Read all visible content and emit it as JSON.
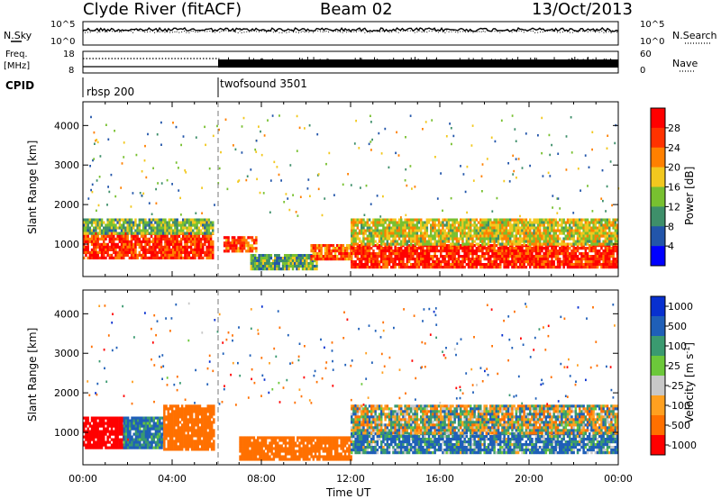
{
  "header": {
    "station": "Clyde River (fitACF)",
    "beam": "Beam 02",
    "date": "13/Oct/2013"
  },
  "params_panel": {
    "nsky_label": "N.Sky",
    "nsearch_label": "N.Search",
    "freq_label_line1": "Freq.",
    "freq_label_line2": "[MHz]",
    "nave_label": "Nave",
    "cpid_label": "CPID",
    "noise_left_ticks": [
      "10^5",
      "10^0"
    ],
    "noise_right_ticks": [
      "10^5",
      "10^0"
    ],
    "freq_ticks": [
      "18",
      "8"
    ],
    "nave_ticks": [
      "60",
      "0"
    ],
    "cpid_segments": [
      {
        "name": "rbsp 200",
        "start_hour": 0,
        "end_hour": 6.0
      },
      {
        "name": "twofsound 3501",
        "start_hour": 6.0,
        "end_hour": 24
      }
    ]
  },
  "time_ticks": [
    "00:00",
    "04:00",
    "08:00",
    "12:00",
    "16:00",
    "20:00",
    "00:00"
  ],
  "range_ticks": [
    "1000",
    "2000",
    "3000",
    "4000"
  ],
  "power_ticks": [
    "4",
    "8",
    "12",
    "16",
    "20",
    "24",
    "28"
  ],
  "velocity_ticks": [
    "1000",
    "500",
    "100",
    "25",
    "-25",
    "-100",
    "-500",
    "-1000"
  ],
  "power_colors": [
    "#0000ff",
    "#2255aa",
    "#3e8f6a",
    "#78c030",
    "#f2c81e",
    "#ff8000",
    "#ff3200",
    "#ff0000"
  ],
  "velocity_colors": [
    "#0830d0",
    "#1f5fb8",
    "#3a9a70",
    "#6cc83a",
    "#c8c8c8",
    "#ffa020",
    "#ff7000",
    "#ff0000"
  ],
  "chart_data": [
    {
      "type": "heatmap",
      "title": "",
      "xlabel": "Time UT",
      "ylabel": "Slant Range [km]",
      "colorbar_label": "Power [dB]",
      "xlim_hours": [
        0,
        24
      ],
      "ylim_km": [
        180,
        4600
      ],
      "colorbar_range": [
        0,
        32
      ],
      "bands": [
        {
          "t0": 0.0,
          "t1": 5.8,
          "r0": 650,
          "r1": 1300,
          "value": 27
        },
        {
          "t0": 0.0,
          "t1": 5.8,
          "r0": 1300,
          "r1": 1650,
          "value": 13
        },
        {
          "t0": 6.3,
          "t1": 7.8,
          "r0": 850,
          "r1": 1200,
          "value": 24
        },
        {
          "t0": 7.5,
          "t1": 10.5,
          "r0": 350,
          "r1": 750,
          "value": 12
        },
        {
          "t0": 10.2,
          "t1": 12.0,
          "r0": 650,
          "r1": 1000,
          "value": 24
        },
        {
          "t0": 12.0,
          "t1": 24.0,
          "r0": 450,
          "r1": 1000,
          "value": 28
        },
        {
          "t0": 12.0,
          "t1": 24.0,
          "r0": 1000,
          "r1": 1650,
          "value": 17
        }
      ]
    },
    {
      "type": "heatmap",
      "title": "",
      "xlabel": "Time UT",
      "ylabel": "Slant Range [km]",
      "colorbar_label": "Velocity [m s^-1]",
      "xlim_hours": [
        0,
        24
      ],
      "ylim_km": [
        180,
        4600
      ],
      "bands": [
        {
          "t0": 0.0,
          "t1": 2.0,
          "r0": 600,
          "r1": 1400,
          "value": -800
        },
        {
          "t0": 1.8,
          "t1": 3.6,
          "r0": 600,
          "r1": 1400,
          "value": 150
        },
        {
          "t0": 3.6,
          "t1": 5.9,
          "r0": 600,
          "r1": 1700,
          "value": -300
        },
        {
          "t0": 7.0,
          "t1": 12.0,
          "r0": 350,
          "r1": 900,
          "value": -250
        },
        {
          "t0": 12.0,
          "t1": 24.0,
          "r0": 500,
          "r1": 1000,
          "value": 120
        },
        {
          "t0": 12.0,
          "t1": 24.0,
          "r0": 1000,
          "r1": 1700,
          "value": 0
        }
      ]
    }
  ]
}
